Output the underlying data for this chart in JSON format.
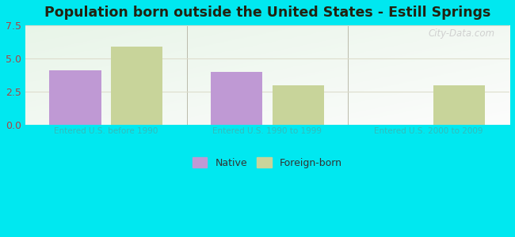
{
  "title": "Population born outside the United States - Estill Springs",
  "categories": [
    "Entered U.S. before 1990",
    "Entered U.S. 1990 to 1999",
    "Entered U.S. 2000 to 2009"
  ],
  "native_values": [
    4.1,
    4.0,
    0
  ],
  "foreign_values": [
    5.9,
    3.0,
    3.0
  ],
  "native_color": "#bf99d4",
  "foreign_color": "#c8d49a",
  "ylim": [
    0,
    7.5
  ],
  "yticks": [
    0,
    2.5,
    5,
    7.5
  ],
  "background_outer": "#00e8f0",
  "bar_width": 0.32,
  "legend_native": "Native",
  "legend_foreign": "Foreign-born",
  "watermark": "City-Data.com",
  "xlabel_color": "#33bbbb",
  "tick_color": "#aa4444",
  "grid_color": "#ddddcc",
  "title_color": "#222211"
}
